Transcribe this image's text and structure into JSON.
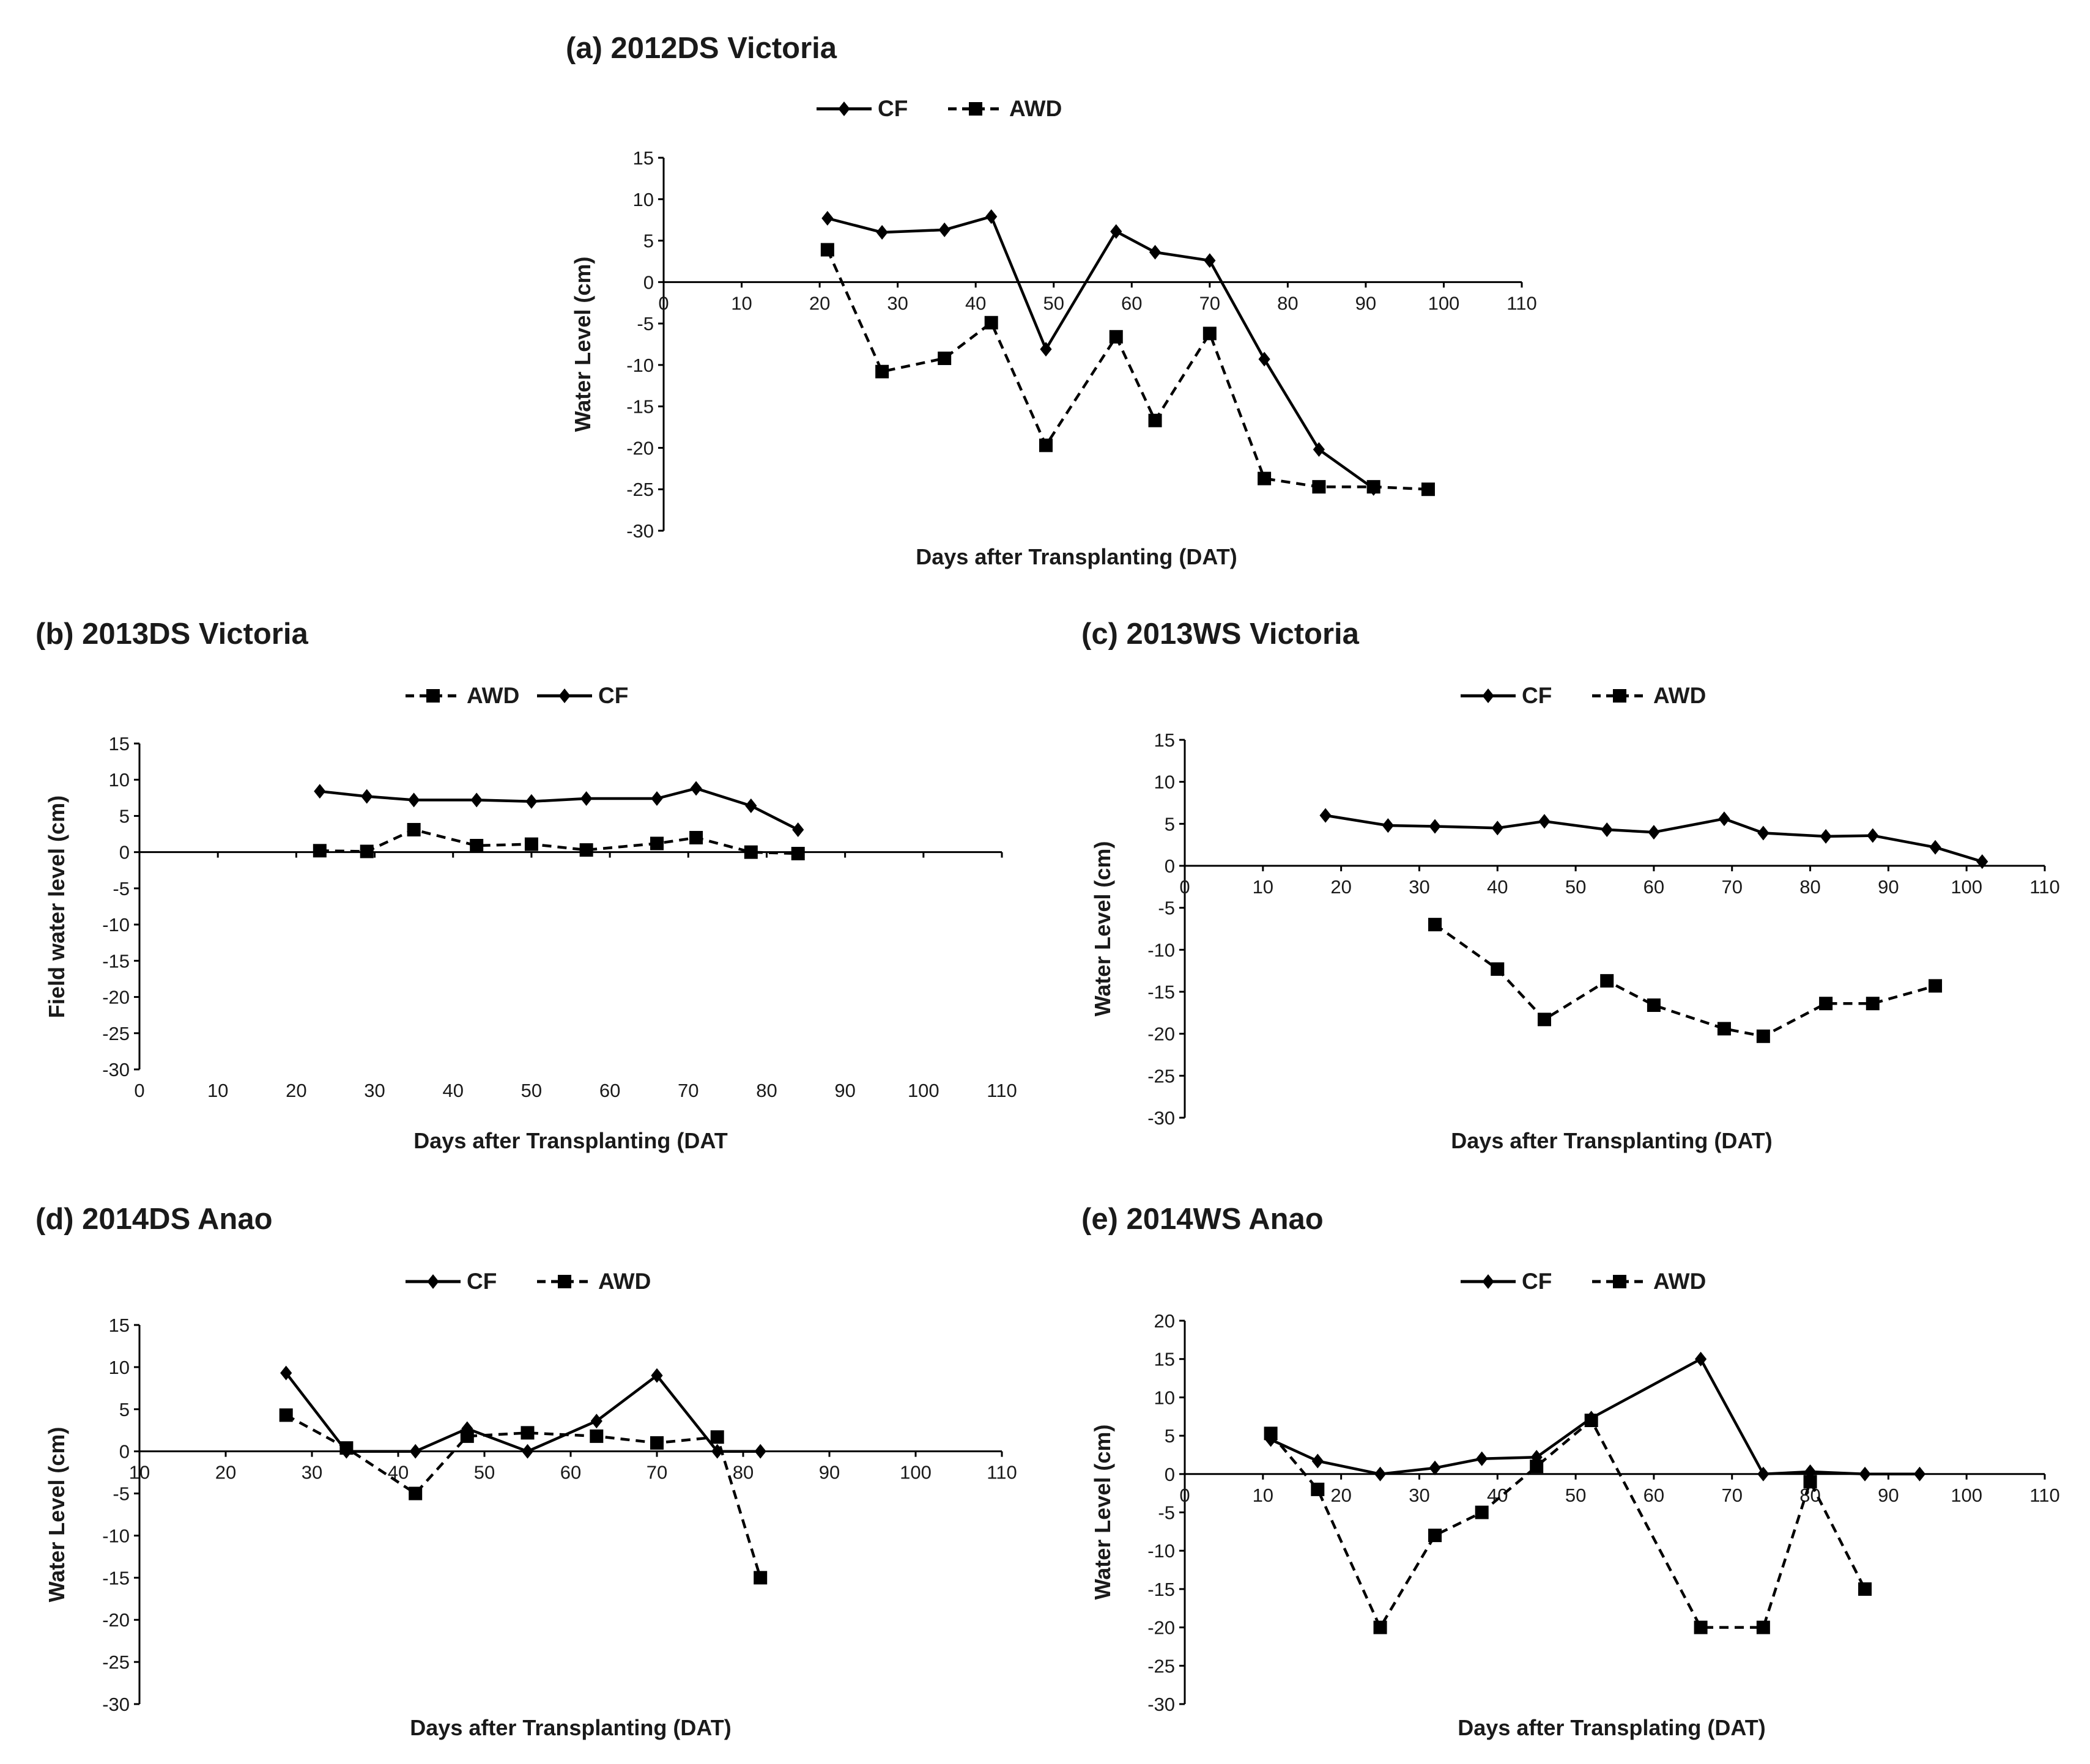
{
  "figure": {
    "background": "#ffffff",
    "ink": "#000000"
  },
  "chart_data": [
    {
      "id": "a",
      "type": "line",
      "title": "(a) 2012DS Victoria",
      "xlabel": "Days after Transplanting (DAT)",
      "ylabel": "Water Level (cm)",
      "xlim": [
        0,
        110
      ],
      "ylim": [
        -30,
        15
      ],
      "xticks": [
        "0",
        "10",
        "20",
        "30",
        "40",
        "50",
        "60",
        "70",
        "80",
        "90",
        "100",
        "110"
      ],
      "yticks": [
        "15",
        "10",
        "5",
        "0",
        "-5",
        "-10",
        "-15",
        "-20",
        "-25",
        "-30"
      ],
      "x_axis_crossing": "y=0",
      "legend": [
        "CF",
        "AWD"
      ],
      "legend_position": "top-center",
      "series": [
        {
          "name": "CF",
          "marker": "diamond",
          "style": "solid",
          "x": [
            21,
            28,
            36,
            42,
            49,
            58,
            63,
            70,
            77,
            84,
            91
          ],
          "y": [
            7.7,
            6.0,
            6.3,
            7.9,
            -8.1,
            6.1,
            3.6,
            2.6,
            -9.3,
            -20.2,
            -24.9
          ]
        },
        {
          "name": "AWD",
          "marker": "square",
          "style": "dashed",
          "x": [
            21,
            28,
            36,
            42,
            49,
            58,
            63,
            70,
            77,
            84,
            91,
            98
          ],
          "y": [
            3.9,
            -10.8,
            -9.2,
            -4.9,
            -19.7,
            -6.6,
            -16.7,
            -6.2,
            -23.7,
            -24.7,
            -24.7,
            -25.0
          ]
        }
      ]
    },
    {
      "id": "b",
      "type": "line",
      "title": "(b) 2013DS Victoria",
      "xlabel": "Days after Transplanting (DAT",
      "ylabel": "Field water level (cm)",
      "xlim": [
        0,
        110
      ],
      "ylim": [
        -30,
        15
      ],
      "xticks": [
        "0",
        "10",
        "20",
        "30",
        "40",
        "50",
        "60",
        "70",
        "80",
        "90",
        "100",
        "110"
      ],
      "yticks": [
        "15",
        "10",
        "5",
        "0",
        "-5",
        "-10",
        "-15",
        "-20",
        "-25",
        "-30"
      ],
      "x_axis_crossing": "y=0",
      "legend": [
        "AWD",
        "CF"
      ],
      "legend_position": "top-center",
      "series": [
        {
          "name": "AWD",
          "marker": "square",
          "style": "dashed",
          "x": [
            23,
            29,
            35,
            43,
            50,
            57,
            66,
            71,
            78,
            84
          ],
          "y": [
            0.2,
            0.1,
            3.1,
            0.9,
            1.1,
            0.3,
            1.2,
            2.0,
            0.0,
            -0.2
          ]
        },
        {
          "name": "CF",
          "marker": "diamond",
          "style": "solid",
          "x": [
            23,
            29,
            35,
            43,
            50,
            57,
            66,
            71,
            78,
            84
          ],
          "y": [
            8.4,
            7.7,
            7.2,
            7.2,
            7.0,
            7.4,
            7.4,
            8.8,
            6.4,
            3.1
          ]
        }
      ]
    },
    {
      "id": "c",
      "type": "line",
      "title": "(c) 2013WS Victoria",
      "xlabel": "Days after Transplanting (DAT)",
      "ylabel": "Water Level (cm)",
      "xlim": [
        0,
        110
      ],
      "ylim": [
        -30,
        15
      ],
      "xticks": [
        "0",
        "10",
        "20",
        "30",
        "40",
        "50",
        "60",
        "70",
        "80",
        "90",
        "100",
        "110"
      ],
      "yticks": [
        "15",
        "10",
        "5",
        "0",
        "-5",
        "-10",
        "-15",
        "-20",
        "-25",
        "-30"
      ],
      "x_axis_crossing": "y=0",
      "legend": [
        "CF",
        "AWD"
      ],
      "legend_position": "top-center",
      "series": [
        {
          "name": "CF",
          "marker": "diamond",
          "style": "solid",
          "x": [
            18,
            26,
            32,
            40,
            46,
            54,
            60,
            69,
            74,
            82,
            88,
            96,
            102
          ],
          "y": [
            6.0,
            4.8,
            4.7,
            4.5,
            5.3,
            4.3,
            4.0,
            5.6,
            3.9,
            3.5,
            3.6,
            2.2,
            0.5
          ]
        },
        {
          "name": "AWD",
          "marker": "square",
          "style": "dashed",
          "x": [
            32,
            40,
            46,
            54,
            60,
            69,
            74,
            82,
            88,
            96
          ],
          "y": [
            -7.0,
            -12.3,
            -18.3,
            -13.7,
            -16.6,
            -19.4,
            -20.3,
            -16.4,
            -16.4,
            -14.3
          ]
        }
      ]
    },
    {
      "id": "d",
      "type": "line",
      "title": "(d) 2014DS Anao",
      "xlabel": "Days after Transplanting (DAT)",
      "ylabel": "Water Level (cm)",
      "xlim": [
        10,
        110
      ],
      "ylim": [
        -30,
        15
      ],
      "xticks": [
        "10",
        "20",
        "30",
        "40",
        "50",
        "60",
        "70",
        "80",
        "90",
        "100",
        "110"
      ],
      "yticks": [
        "15",
        "10",
        "5",
        "0",
        "-5",
        "-10",
        "-15",
        "-20",
        "-25",
        "-30"
      ],
      "x_axis_crossing": "y=0",
      "legend": [
        "CF",
        "AWD"
      ],
      "legend_position": "top-center",
      "series": [
        {
          "name": "CF",
          "marker": "diamond",
          "style": "solid",
          "x": [
            27,
            34,
            42,
            48,
            55,
            63,
            70,
            77,
            82
          ],
          "y": [
            9.3,
            0.0,
            0.0,
            2.7,
            0.0,
            3.6,
            9.0,
            0.0,
            0.0
          ]
        },
        {
          "name": "AWD",
          "marker": "square",
          "style": "dashed",
          "x": [
            27,
            34,
            42,
            48,
            55,
            63,
            70,
            77,
            82
          ],
          "y": [
            4.3,
            0.4,
            -5.0,
            1.8,
            2.2,
            1.8,
            1.0,
            1.7,
            -15.0
          ]
        }
      ]
    },
    {
      "id": "e",
      "type": "line",
      "title": "(e) 2014WS Anao",
      "xlabel": "Days after Transplating (DAT)",
      "ylabel": "Water Level (cm)",
      "xlim": [
        0,
        110
      ],
      "ylim": [
        -30,
        20
      ],
      "xticks": [
        "0",
        "10",
        "20",
        "30",
        "40",
        "50",
        "60",
        "70",
        "80",
        "90",
        "100",
        "110"
      ],
      "yticks": [
        "20",
        "15",
        "10",
        "5",
        "0",
        "-5",
        "-10",
        "-15",
        "-20",
        "-25",
        "-30"
      ],
      "x_axis_crossing": "y=0",
      "legend": [
        "CF",
        "AWD"
      ],
      "legend_position": "top-center",
      "series": [
        {
          "name": "CF",
          "marker": "diamond",
          "style": "solid",
          "x": [
            11,
            17,
            25,
            32,
            38,
            45,
            52,
            66,
            74,
            80,
            87,
            94
          ],
          "y": [
            4.5,
            1.7,
            0.0,
            0.8,
            2.0,
            2.2,
            7.3,
            15.0,
            0.0,
            0.3,
            0.0,
            0.0
          ]
        },
        {
          "name": "AWD",
          "marker": "square",
          "style": "dashed",
          "x": [
            11,
            17,
            25,
            32,
            38,
            45,
            52,
            66,
            74,
            80,
            87
          ],
          "y": [
            5.3,
            -2.0,
            -20.0,
            -8.0,
            -5.0,
            1.0,
            7.0,
            -20.0,
            -20.0,
            -1.0,
            -15.0
          ]
        }
      ]
    }
  ]
}
